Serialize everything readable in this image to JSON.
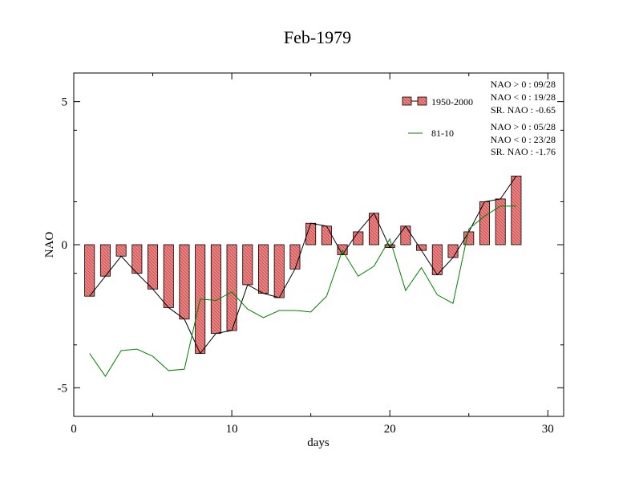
{
  "chart_data": {
    "type": "bar",
    "title": "Feb-1979",
    "xlabel": "days",
    "ylabel": "NAO",
    "xlim": [
      0,
      31
    ],
    "ylim": [
      -6,
      6
    ],
    "xticks": [
      0,
      10,
      20,
      30
    ],
    "xtick_labels": [
      "0",
      "10",
      "20",
      "30"
    ],
    "yticks": [
      -5,
      0,
      5
    ],
    "ytick_labels": [
      "-5",
      "0",
      "5"
    ],
    "x": [
      1,
      2,
      3,
      4,
      5,
      6,
      7,
      8,
      9,
      10,
      11,
      12,
      13,
      14,
      15,
      16,
      17,
      18,
      19,
      20,
      21,
      22,
      23,
      24,
      25,
      26,
      27,
      28
    ],
    "series": [
      {
        "name": "1950-2000",
        "kind": "bar+line",
        "color": "#f08080",
        "line_color": "#000000",
        "values": [
          -1.8,
          -1.1,
          -0.4,
          -1.0,
          -1.55,
          -2.2,
          -2.6,
          -3.8,
          -3.1,
          -3.0,
          -1.4,
          -1.7,
          -1.85,
          -0.85,
          0.75,
          0.65,
          -0.35,
          0.45,
          1.1,
          -0.1,
          0.65,
          -0.2,
          -1.05,
          -0.45,
          0.45,
          1.5,
          1.6,
          2.4
        ]
      },
      {
        "name": "81-10",
        "kind": "line",
        "color": "#008000",
        "values": [
          -3.8,
          -4.6,
          -3.7,
          -3.65,
          -3.9,
          -4.4,
          -4.35,
          -1.9,
          -1.95,
          -1.65,
          -2.25,
          -2.55,
          -2.3,
          -2.3,
          -2.35,
          -1.8,
          -0.2,
          -1.1,
          -0.75,
          0.2,
          -1.6,
          -0.8,
          -1.75,
          -2.05,
          0.55,
          1.0,
          1.35,
          1.35
        ]
      }
    ],
    "legend": {
      "position": "top-right",
      "entries": [
        {
          "label": "1950-2000",
          "stats": [
            "NAO > 0 : 09/28",
            "NAO < 0 : 19/28",
            "SR. NAO : -0.65"
          ]
        },
        {
          "label": "81-10",
          "stats": [
            "NAO > 0 : 05/28",
            "NAO < 0 : 23/28",
            "SR. NAO : -1.76"
          ]
        }
      ]
    },
    "grid": false
  }
}
